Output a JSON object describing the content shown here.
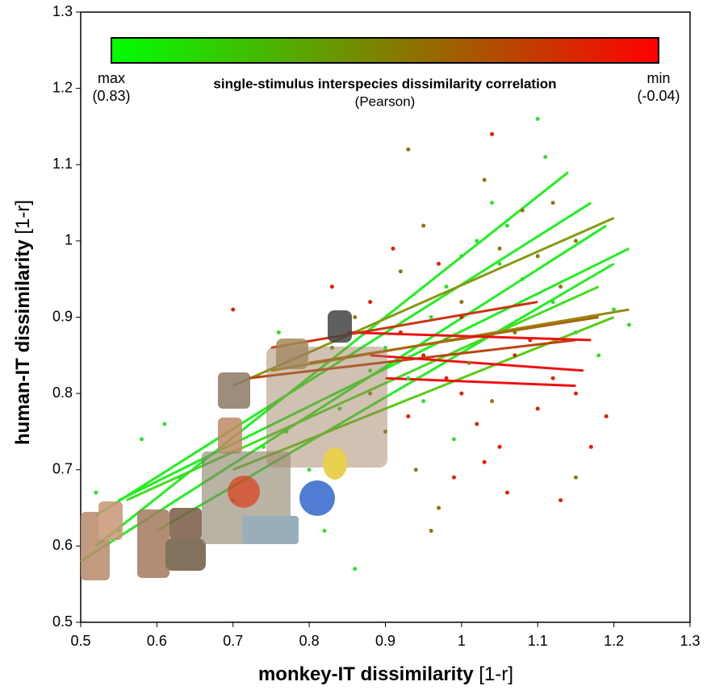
{
  "chart_data": {
    "type": "scatter",
    "xlabel": "monkey-IT dissimilarity",
    "xlabel_unit": "[1-r]",
    "ylabel": "human-IT dissimilarity",
    "ylabel_unit": "[1-r]",
    "xlim": [
      0.5,
      1.3
    ],
    "ylim": [
      0.5,
      1.3
    ],
    "xticks": [
      0.5,
      0.6,
      0.7,
      0.8,
      0.9,
      1,
      1.1,
      1.2,
      1.3
    ],
    "yticks": [
      0.5,
      0.6,
      0.7,
      0.8,
      0.9,
      1,
      1.1,
      1.2,
      1.3
    ],
    "colorbar": {
      "title": "single-stimulus interspecies dissimilarity correlation",
      "subtitle": "(Pearson)",
      "colors": [
        "#00ff00",
        "#ff0000"
      ],
      "max_text": "max",
      "max_value": {
        "value": 0.83,
        "label": "(0.83)"
      },
      "min_text": "min",
      "min_value": {
        "value": -0.04,
        "label": "(-0.04)"
      }
    },
    "series": [
      {
        "color": "#33dd33",
        "x": [
          0.52,
          0.55,
          0.58,
          0.61,
          0.63,
          0.66,
          0.7,
          0.74,
          0.77,
          0.8,
          0.84,
          0.88,
          0.9,
          0.93,
          0.96,
          0.98,
          1.0,
          1.02,
          1.04,
          1.06,
          1.08,
          1.1,
          1.12,
          1.15,
          0.86,
          0.82,
          1.18,
          1.2,
          1.22,
          1.05,
          0.95,
          0.99,
          0.76,
          1.11
        ],
        "values": [
          0.67,
          0.62,
          0.74,
          0.76,
          0.69,
          0.71,
          0.66,
          0.73,
          0.75,
          0.7,
          0.78,
          0.83,
          0.86,
          0.82,
          0.9,
          0.94,
          0.98,
          1.0,
          1.05,
          1.02,
          0.95,
          1.16,
          0.92,
          0.88,
          0.57,
          0.62,
          0.85,
          0.91,
          0.89,
          0.97,
          0.79,
          0.74,
          0.88,
          1.11
        ]
      },
      {
        "color": "#8a7a10",
        "x": [
          0.86,
          0.92,
          0.95,
          0.98,
          1.0,
          1.03,
          1.05,
          1.08,
          1.1,
          1.13,
          1.15,
          1.17,
          0.9,
          0.94,
          0.97,
          1.01,
          1.04,
          1.07,
          0.88,
          0.83,
          1.12,
          0.93,
          1.15,
          0.96
        ],
        "values": [
          0.9,
          0.96,
          1.02,
          0.87,
          0.92,
          1.08,
          0.99,
          1.04,
          0.98,
          0.94,
          1.0,
          0.9,
          0.75,
          0.7,
          0.65,
          0.84,
          0.79,
          0.88,
          0.8,
          0.86,
          1.05,
          1.12,
          0.69,
          0.62
        ]
      },
      {
        "color": "#dd2200",
        "x": [
          0.7,
          0.83,
          0.88,
          0.92,
          0.95,
          0.98,
          1.0,
          1.02,
          1.05,
          1.07,
          1.1,
          1.12,
          1.15,
          1.17,
          1.19,
          0.93,
          0.97,
          1.0,
          1.03,
          1.06,
          1.09,
          0.91,
          1.04,
          0.99,
          1.13
        ],
        "values": [
          0.91,
          0.94,
          0.92,
          0.88,
          0.85,
          0.82,
          0.8,
          0.76,
          0.73,
          0.85,
          0.78,
          0.82,
          0.8,
          0.73,
          0.77,
          0.77,
          0.97,
          0.9,
          0.71,
          0.67,
          0.87,
          0.99,
          1.14,
          0.69,
          0.66
        ]
      }
    ],
    "lines": [
      {
        "color": "#22ee22",
        "x": [
          0.52,
          1.14
        ],
        "y": [
          0.6,
          1.09
        ]
      },
      {
        "color": "#22ee22",
        "x": [
          0.52,
          1.17
        ],
        "y": [
          0.64,
          1.05
        ]
      },
      {
        "color": "#22ee22",
        "x": [
          0.55,
          1.22
        ],
        "y": [
          0.66,
          0.99
        ]
      },
      {
        "color": "#22ee22",
        "x": [
          0.5,
          1.19
        ],
        "y": [
          0.58,
          1.02
        ]
      },
      {
        "color": "#22ee22",
        "x": [
          0.6,
          1.2
        ],
        "y": [
          0.62,
          0.97
        ]
      },
      {
        "color": "#44dd22",
        "x": [
          0.56,
          1.18
        ],
        "y": [
          0.66,
          0.94
        ]
      },
      {
        "color": "#55cc11",
        "x": [
          0.7,
          1.2
        ],
        "y": [
          0.7,
          0.9
        ]
      },
      {
        "color": "#889911",
        "x": [
          0.7,
          1.2
        ],
        "y": [
          0.81,
          1.03
        ]
      },
      {
        "color": "#998811",
        "x": [
          0.75,
          1.22
        ],
        "y": [
          0.83,
          0.91
        ]
      },
      {
        "color": "#aa6611",
        "x": [
          0.8,
          1.18
        ],
        "y": [
          0.84,
          0.9
        ]
      },
      {
        "color": "#bb4411",
        "x": [
          0.72,
          1.15
        ],
        "y": [
          0.82,
          0.87
        ]
      },
      {
        "color": "#ee1111",
        "x": [
          0.85,
          1.17
        ],
        "y": [
          0.88,
          0.87
        ]
      },
      {
        "color": "#ee1111",
        "x": [
          0.88,
          1.16
        ],
        "y": [
          0.85,
          0.83
        ]
      },
      {
        "color": "#ee1111",
        "x": [
          0.9,
          1.15
        ],
        "y": [
          0.82,
          0.81
        ]
      },
      {
        "color": "#cc3311",
        "x": [
          0.75,
          1.1
        ],
        "y": [
          0.86,
          0.92
        ]
      }
    ]
  }
}
